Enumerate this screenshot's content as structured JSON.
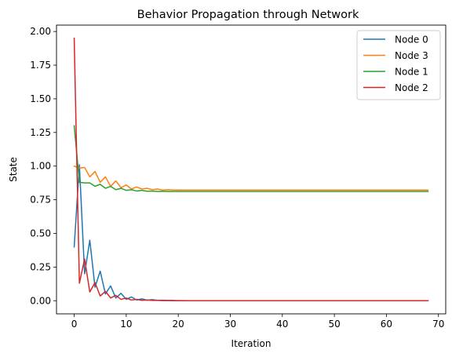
{
  "chart_data": {
    "type": "line",
    "title": "Behavior Propagation through Network",
    "xlabel": "Iteration",
    "ylabel": "State",
    "xlim": [
      -3.4,
      71.4
    ],
    "ylim": [
      -0.0975,
      2.0475
    ],
    "xticks": [
      0,
      10,
      20,
      30,
      40,
      50,
      60,
      70
    ],
    "yticks": [
      "0.00",
      "0.25",
      "0.50",
      "0.75",
      "1.00",
      "1.25",
      "1.50",
      "1.75",
      "2.00"
    ],
    "grid": false,
    "legend_position": "top-right",
    "series": [
      {
        "name": "Node 0",
        "color": "#1f77b4",
        "values": [
          0.4,
          1.01,
          0.2,
          0.45,
          0.1,
          0.22,
          0.05,
          0.11,
          0.02,
          0.055,
          0.01,
          0.028,
          0.005,
          0.014,
          0.004,
          0.008,
          0.003,
          0.004,
          0.002,
          0.002,
          0.001,
          0.001,
          0.0,
          0.0,
          0.0,
          0.0,
          0.0,
          0.0,
          0.0,
          0.0,
          0.0,
          0.0,
          0.0,
          0.0,
          0.0,
          0.0,
          0.0,
          0.0,
          0.0,
          0.0,
          0.0,
          0.0,
          0.0,
          0.0,
          0.0,
          0.0,
          0.0,
          0.0,
          0.0,
          0.0,
          0.0,
          0.0,
          0.0,
          0.0,
          0.0,
          0.0,
          0.0,
          0.0,
          0.0,
          0.0,
          0.0,
          0.0,
          0.0,
          0.0,
          0.0,
          0.0,
          0.0,
          0.0,
          0.0
        ]
      },
      {
        "name": "Node 3",
        "color": "#ff7f0e",
        "values": [
          1.0,
          0.985,
          0.99,
          0.92,
          0.96,
          0.88,
          0.92,
          0.85,
          0.89,
          0.84,
          0.86,
          0.83,
          0.845,
          0.83,
          0.835,
          0.825,
          0.83,
          0.822,
          0.825,
          0.822,
          0.823,
          0.822,
          0.822,
          0.822,
          0.822,
          0.822,
          0.822,
          0.822,
          0.822,
          0.822,
          0.822,
          0.822,
          0.822,
          0.822,
          0.822,
          0.822,
          0.822,
          0.822,
          0.822,
          0.822,
          0.822,
          0.822,
          0.822,
          0.822,
          0.822,
          0.822,
          0.822,
          0.822,
          0.822,
          0.822,
          0.822,
          0.822,
          0.822,
          0.822,
          0.822,
          0.822,
          0.822,
          0.822,
          0.822,
          0.822,
          0.822,
          0.822,
          0.822,
          0.822,
          0.822,
          0.822,
          0.822,
          0.822,
          0.822
        ]
      },
      {
        "name": "Node 1",
        "color": "#2ca02c",
        "values": [
          1.3,
          0.88,
          0.875,
          0.875,
          0.85,
          0.865,
          0.835,
          0.85,
          0.825,
          0.835,
          0.82,
          0.825,
          0.815,
          0.82,
          0.813,
          0.815,
          0.812,
          0.813,
          0.812,
          0.812,
          0.812,
          0.812,
          0.812,
          0.812,
          0.812,
          0.812,
          0.812,
          0.812,
          0.812,
          0.812,
          0.812,
          0.812,
          0.812,
          0.812,
          0.812,
          0.812,
          0.812,
          0.812,
          0.812,
          0.812,
          0.812,
          0.812,
          0.812,
          0.812,
          0.812,
          0.812,
          0.812,
          0.812,
          0.812,
          0.812,
          0.812,
          0.812,
          0.812,
          0.812,
          0.812,
          0.812,
          0.812,
          0.812,
          0.812,
          0.812,
          0.812,
          0.812,
          0.812,
          0.812,
          0.812,
          0.812,
          0.812,
          0.812,
          0.812
        ]
      },
      {
        "name": "Node 2",
        "color": "#d62728",
        "values": [
          1.95,
          0.13,
          0.31,
          0.065,
          0.135,
          0.035,
          0.07,
          0.02,
          0.04,
          0.01,
          0.02,
          0.005,
          0.01,
          0.003,
          0.005,
          0.002,
          0.002,
          0.001,
          0.001,
          0.0,
          0.0,
          0.0,
          0.0,
          0.0,
          0.0,
          0.0,
          0.0,
          0.0,
          0.0,
          0.0,
          0.0,
          0.0,
          0.0,
          0.0,
          0.0,
          0.0,
          0.0,
          0.0,
          0.0,
          0.0,
          0.0,
          0.0,
          0.0,
          0.0,
          0.0,
          0.0,
          0.0,
          0.0,
          0.0,
          0.0,
          0.0,
          0.0,
          0.0,
          0.0,
          0.0,
          0.0,
          0.0,
          0.0,
          0.0,
          0.0,
          0.0,
          0.0,
          0.0,
          0.0,
          0.0,
          0.0,
          0.0,
          0.0,
          0.0
        ]
      }
    ]
  }
}
